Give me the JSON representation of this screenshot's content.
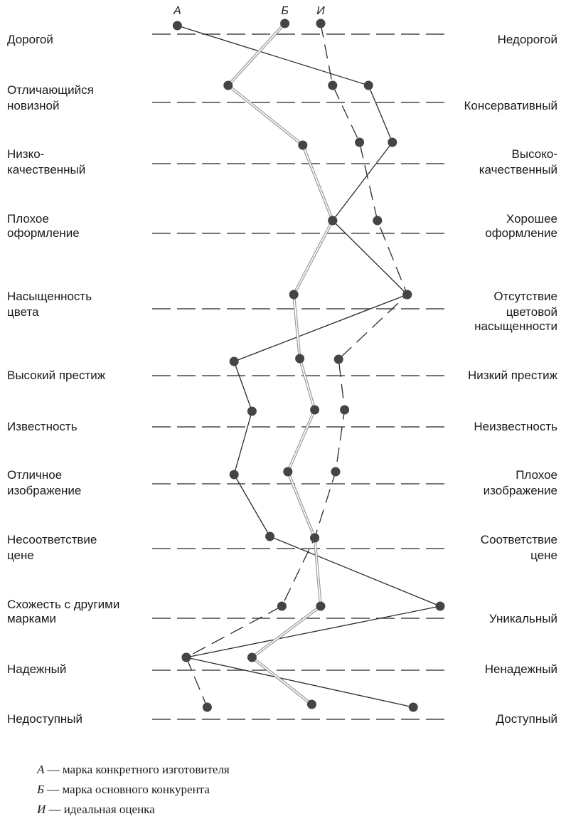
{
  "scales": [
    {
      "left": [
        "Дорогой"
      ],
      "right": [
        "Недорогой"
      ]
    },
    {
      "left": [
        "Отличающийся",
        "новизной"
      ],
      "right": [
        "Консервативный"
      ]
    },
    {
      "left": [
        "Низко-",
        "качественный"
      ],
      "right": [
        "Высоко-",
        "качественный"
      ]
    },
    {
      "left": [
        "Плохое",
        "оформление"
      ],
      "right": [
        "Хорошее",
        "оформление"
      ]
    },
    {
      "left": [
        "Насыщенность",
        "цвета"
      ],
      "right": [
        "Отсутствие",
        "цветовой",
        "насыщенности"
      ]
    },
    {
      "left": [
        "Высокий престиж"
      ],
      "right": [
        "Низкий престиж"
      ]
    },
    {
      "left": [
        "Известность"
      ],
      "right": [
        "Неизвестность"
      ]
    },
    {
      "left": [
        "Отличное",
        "изображение"
      ],
      "right": [
        "Плохое",
        "изображение"
      ]
    },
    {
      "left": [
        "Несоответствие",
        "цене"
      ],
      "right": [
        "Соответствие",
        "цене"
      ]
    },
    {
      "left": [
        "Схожесть с другими",
        "марками"
      ],
      "right": [
        "Уникальный"
      ]
    },
    {
      "left": [
        "Надежный"
      ],
      "right": [
        "Ненадежный"
      ]
    },
    {
      "left": [
        "Недоступный"
      ],
      "right": [
        "Доступный"
      ]
    }
  ],
  "series": [
    {
      "key": "А",
      "style": "solid",
      "color": "#2b2b2b",
      "values": [
        0.07,
        0.71,
        0.79,
        0.59,
        0.84,
        0.26,
        0.32,
        0.26,
        0.38,
        0.95,
        0.1,
        0.86
      ]
    },
    {
      "key": "Б",
      "style": "double",
      "color": "#9a9a9a",
      "values": [
        0.43,
        0.24,
        0.49,
        0.59,
        0.46,
        0.48,
        0.53,
        0.44,
        0.53,
        0.55,
        0.32,
        0.52
      ]
    },
    {
      "key": "И",
      "style": "dashed",
      "color": "#2b2b2b",
      "values": [
        0.55,
        0.59,
        0.68,
        0.74,
        0.84,
        0.61,
        0.63,
        0.6,
        0.53,
        0.42,
        0.1,
        0.17
      ]
    }
  ],
  "legend": [
    {
      "key": "А",
      "text": " — марка конкретного изготовителя"
    },
    {
      "key": "Б",
      "text": " — марка основного конкурента"
    },
    {
      "key": "И",
      "text": " — идеальная оценка"
    }
  ]
}
